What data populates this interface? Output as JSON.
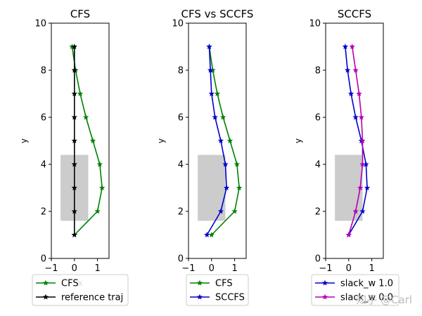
{
  "chart_data": [
    {
      "type": "line",
      "title": "CFS",
      "xlabel": "x",
      "ylabel": "y",
      "xlim": [
        -1,
        1.5
      ],
      "ylim": [
        0,
        10
      ],
      "xticks": [
        -1,
        0,
        1
      ],
      "yticks": [
        0,
        2,
        4,
        6,
        8,
        10
      ],
      "obstacle": {
        "x": [
          -0.6,
          0.6
        ],
        "y": [
          1.6,
          4.4
        ],
        "color": "#cccccc"
      },
      "series": [
        {
          "name": "CFS",
          "color": "#008000",
          "x": [
            0,
            1.0,
            1.2,
            1.1,
            0.8,
            0.5,
            0.25,
            0.05,
            -0.1
          ],
          "y": [
            1,
            2,
            3,
            4,
            5,
            6,
            7,
            8,
            9
          ]
        },
        {
          "name": "reference traj",
          "color": "#000000",
          "x": [
            0,
            0,
            0,
            0,
            0,
            0,
            0,
            0,
            0
          ],
          "y": [
            1,
            2,
            3,
            4,
            5,
            6,
            7,
            8,
            9
          ]
        }
      ],
      "legend": [
        "CFS",
        "reference traj"
      ]
    },
    {
      "type": "line",
      "title": "CFS vs SCCFS",
      "xlabel": "x",
      "ylabel": "y",
      "xlim": [
        -1,
        1.5
      ],
      "ylim": [
        0,
        10
      ],
      "xticks": [
        -1,
        0,
        1
      ],
      "yticks": [
        0,
        2,
        4,
        6,
        8,
        10
      ],
      "obstacle": {
        "x": [
          -0.6,
          0.6
        ],
        "y": [
          1.6,
          4.4
        ],
        "color": "#cccccc"
      },
      "series": [
        {
          "name": "CFS",
          "color": "#008000",
          "x": [
            0,
            1.0,
            1.2,
            1.1,
            0.8,
            0.5,
            0.25,
            0.05,
            -0.1
          ],
          "y": [
            1,
            2,
            3,
            4,
            5,
            6,
            7,
            8,
            9
          ]
        },
        {
          "name": "SCCFS",
          "color": "#0000cc",
          "x": [
            -0.2,
            0.4,
            0.65,
            0.6,
            0.4,
            0.15,
            0.0,
            -0.05,
            -0.1
          ],
          "y": [
            1,
            2,
            3,
            4,
            5,
            6,
            7,
            8,
            9
          ]
        }
      ],
      "legend": [
        "CFS",
        "SCCFS"
      ]
    },
    {
      "type": "line",
      "title": "SCCFS",
      "xlabel": "x",
      "ylabel": "y",
      "xlim": [
        -1,
        1.5
      ],
      "ylim": [
        0,
        10
      ],
      "xticks": [
        -1,
        0,
        1
      ],
      "yticks": [
        0,
        2,
        4,
        6,
        8,
        10
      ],
      "obstacle": {
        "x": [
          -0.6,
          0.6
        ],
        "y": [
          1.6,
          4.4
        ],
        "color": "#cccccc"
      },
      "series": [
        {
          "name": "slack_w 1.0",
          "color": "#0000cc",
          "x": [
            0,
            0.6,
            0.8,
            0.75,
            0.55,
            0.3,
            0.1,
            -0.05,
            -0.15
          ],
          "y": [
            1,
            2,
            3,
            4,
            5,
            6,
            7,
            8,
            9
          ]
        },
        {
          "name": "slack_w 0.0",
          "color": "#b300b3",
          "x": [
            0,
            0.3,
            0.5,
            0.6,
            0.6,
            0.55,
            0.45,
            0.3,
            0.15
          ],
          "y": [
            1,
            2,
            3,
            4,
            5,
            6,
            7,
            8,
            9
          ]
        }
      ],
      "legend": [
        "slack_w 1.0",
        "slack_w 0.0"
      ]
    }
  ],
  "watermark": {
    "text": "知乎 @Carl"
  }
}
